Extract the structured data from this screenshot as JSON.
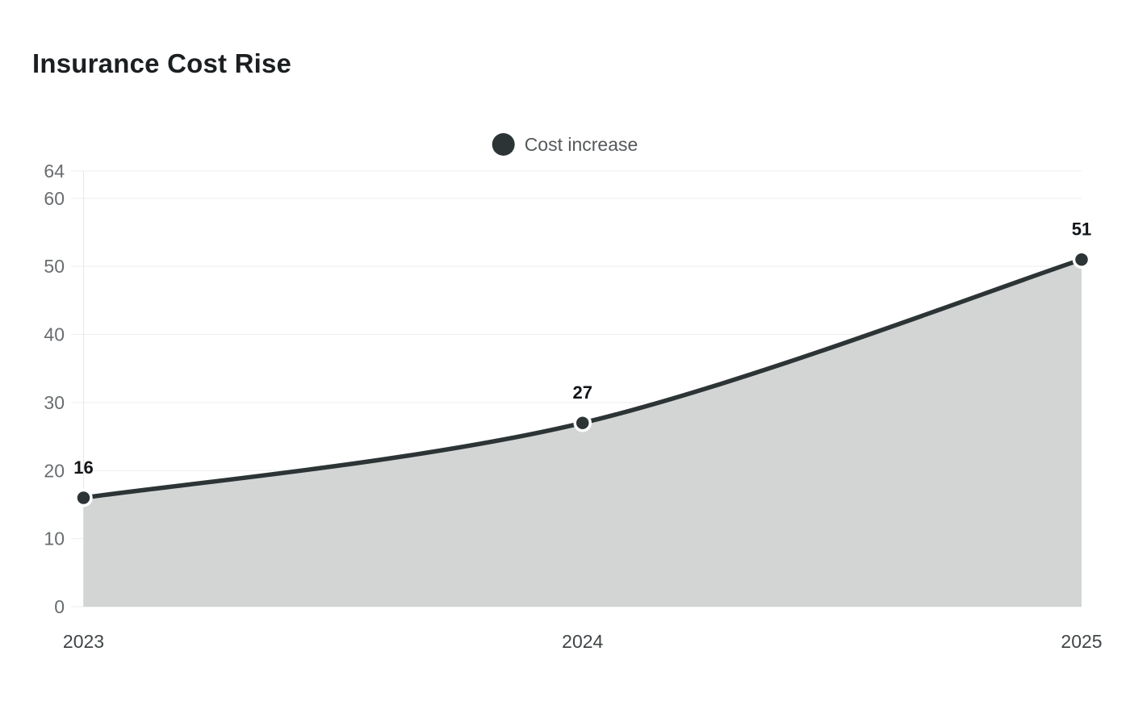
{
  "chart_data": {
    "type": "area",
    "title": "Insurance Cost Rise",
    "categories": [
      "2023",
      "2024",
      "2025"
    ],
    "series": [
      {
        "name": "Cost increase",
        "values": [
          16,
          27,
          51
        ]
      }
    ],
    "data_labels": [
      "16",
      "27",
      "51"
    ],
    "y_ticks": [
      0,
      10,
      20,
      30,
      40,
      50,
      60,
      64
    ],
    "ylim": [
      0,
      64
    ],
    "xlabel": "",
    "ylabel": "",
    "legend_position": "top-center",
    "grid": "horizontal-only",
    "line_style": "smooth",
    "colors": {
      "line": "#2d3436",
      "marker_fill": "#2d3436",
      "marker_ring": "#ffffff",
      "area_fill": "#d3d5d5",
      "gridline": "#ededed",
      "axis_line": "#e5e7e7",
      "y_tick_label": "#696d6f",
      "x_tick_label": "#404547",
      "data_label": "#111517",
      "title": "#1b1f21",
      "legend_text": "#56595b",
      "background": "#ffffff"
    }
  }
}
